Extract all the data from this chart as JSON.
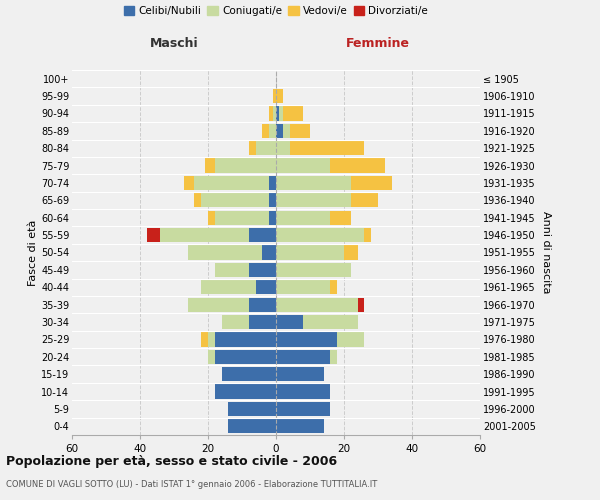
{
  "age_groups": [
    "0-4",
    "5-9",
    "10-14",
    "15-19",
    "20-24",
    "25-29",
    "30-34",
    "35-39",
    "40-44",
    "45-49",
    "50-54",
    "55-59",
    "60-64",
    "65-69",
    "70-74",
    "75-79",
    "80-84",
    "85-89",
    "90-94",
    "95-99",
    "100+"
  ],
  "birth_years": [
    "2001-2005",
    "1996-2000",
    "1991-1995",
    "1986-1990",
    "1981-1985",
    "1976-1980",
    "1971-1975",
    "1966-1970",
    "1961-1965",
    "1956-1960",
    "1951-1955",
    "1946-1950",
    "1941-1945",
    "1936-1940",
    "1931-1935",
    "1926-1930",
    "1921-1925",
    "1916-1920",
    "1911-1915",
    "1906-1910",
    "≤ 1905"
  ],
  "maschi": {
    "celibi": [
      14,
      14,
      18,
      16,
      18,
      18,
      8,
      8,
      6,
      8,
      4,
      8,
      2,
      2,
      2,
      0,
      0,
      0,
      0,
      0,
      0
    ],
    "coniugati": [
      0,
      0,
      0,
      0,
      2,
      2,
      8,
      18,
      16,
      10,
      22,
      26,
      16,
      20,
      22,
      18,
      6,
      2,
      1,
      0,
      0
    ],
    "vedovi": [
      0,
      0,
      0,
      0,
      0,
      2,
      0,
      0,
      0,
      0,
      0,
      0,
      2,
      2,
      3,
      3,
      2,
      2,
      1,
      1,
      0
    ],
    "divorziati": [
      0,
      0,
      0,
      0,
      0,
      0,
      0,
      0,
      0,
      0,
      0,
      4,
      0,
      0,
      0,
      0,
      0,
      0,
      0,
      0,
      0
    ]
  },
  "femmine": {
    "nubili": [
      14,
      16,
      16,
      14,
      16,
      18,
      8,
      0,
      0,
      0,
      0,
      0,
      0,
      0,
      0,
      0,
      0,
      2,
      1,
      0,
      0
    ],
    "coniugate": [
      0,
      0,
      0,
      0,
      2,
      8,
      16,
      24,
      16,
      22,
      20,
      26,
      16,
      22,
      22,
      16,
      4,
      2,
      1,
      0,
      0
    ],
    "vedove": [
      0,
      0,
      0,
      0,
      0,
      0,
      0,
      0,
      2,
      0,
      4,
      2,
      6,
      8,
      12,
      16,
      22,
      6,
      6,
      2,
      0
    ],
    "divorziate": [
      0,
      0,
      0,
      0,
      0,
      0,
      0,
      2,
      0,
      0,
      0,
      0,
      0,
      0,
      0,
      0,
      0,
      0,
      0,
      0,
      0
    ]
  },
  "colors": {
    "celibi_nubili": "#3d6eaa",
    "coniugati": "#c8dba0",
    "vedovi": "#f5c242",
    "divorziati": "#c8211a"
  },
  "xlim": 60,
  "title": "Popolazione per età, sesso e stato civile - 2006",
  "subtitle": "COMUNE DI VAGLI SOTTO (LU) - Dati ISTAT 1° gennaio 2006 - Elaborazione TUTTITALIA.IT",
  "legend_labels": [
    "Celibi/Nubili",
    "Coniugati/e",
    "Vedovi/e",
    "Divorziati/e"
  ],
  "xlabel_left": "Maschi",
  "xlabel_right": "Femmine",
  "ylabel_left": "Fasce di età",
  "ylabel_right": "Anni di nascita",
  "bg_color": "#f0f0f0",
  "plot_bg": "#f0f0f0"
}
